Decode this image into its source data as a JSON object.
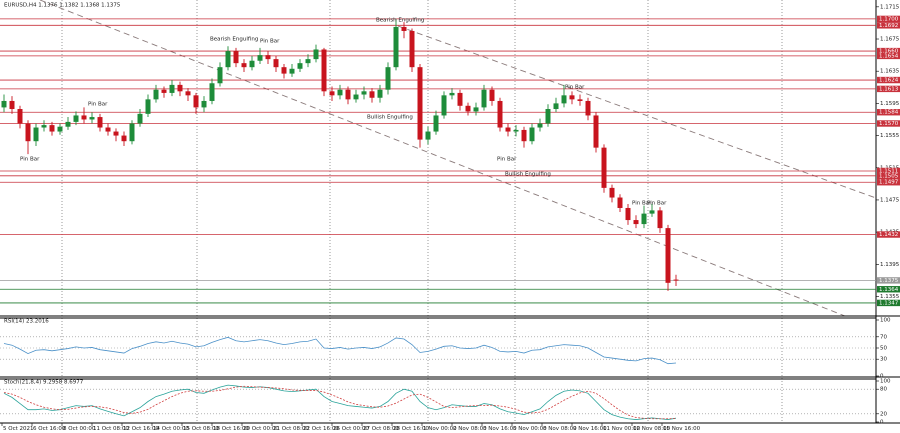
{
  "chart_data": [
    {
      "type": "candlestick",
      "title": "EURUSD,H4  1.1376 1.1382 1.1368 1.1375",
      "up_color": "#1e8c3a",
      "down_color": "#c8141e",
      "ylim": [
        1.1332,
        1.1721
      ],
      "yticks": [
        1.1715,
        1.1675,
        1.1635,
        1.1595,
        1.1555,
        1.1515,
        1.1475,
        1.1435,
        1.1395,
        1.1355
      ],
      "open": [
        1.159,
        1.1598,
        1.1588,
        1.157,
        1.1548,
        1.1565,
        1.1568,
        1.156,
        1.1566,
        1.1572,
        1.158,
        1.1575,
        1.1578,
        1.1565,
        1.156,
        1.1555,
        1.1548,
        1.157,
        1.1582,
        1.16,
        1.1612,
        1.1608,
        1.1618,
        1.161,
        1.1605,
        1.159,
        1.1598,
        1.162,
        1.164,
        1.166,
        1.1645,
        1.164,
        1.1648,
        1.1655,
        1.165,
        1.164,
        1.1632,
        1.1638,
        1.1645,
        1.165,
        1.1662,
        1.161,
        1.1605,
        1.1612,
        1.16,
        1.1606,
        1.161,
        1.1602,
        1.1612,
        1.164,
        1.169,
        1.1685,
        1.164,
        1.155,
        1.156,
        1.158,
        1.1605,
        1.1608,
        1.1592,
        1.1585,
        1.159,
        1.1612,
        1.1598,
        1.1565,
        1.156,
        1.1562,
        1.1548,
        1.1565,
        1.157,
        1.1588,
        1.1595,
        1.1605,
        1.16,
        1.1598,
        1.158,
        1.154,
        1.149,
        1.1478,
        1.1465,
        1.145,
        1.1445,
        1.1458,
        1.1462,
        1.144,
        1.1376
      ],
      "high": [
        1.1606,
        1.1604,
        1.1592,
        1.1574,
        1.157,
        1.1574,
        1.1572,
        1.157,
        1.1578,
        1.1585,
        1.159,
        1.1584,
        1.1582,
        1.157,
        1.1564,
        1.156,
        1.1574,
        1.1588,
        1.1606,
        1.1618,
        1.1616,
        1.1624,
        1.1622,
        1.1614,
        1.1608,
        1.1604,
        1.1626,
        1.1646,
        1.1666,
        1.1664,
        1.165,
        1.1654,
        1.1664,
        1.166,
        1.1654,
        1.1644,
        1.1644,
        1.165,
        1.1656,
        1.1668,
        1.1664,
        1.1616,
        1.1618,
        1.1616,
        1.1612,
        1.1616,
        1.1614,
        1.1618,
        1.1646,
        1.17,
        1.1696,
        1.1688,
        1.1644,
        1.1566,
        1.1586,
        1.161,
        1.1614,
        1.1612,
        1.1596,
        1.1596,
        1.1618,
        1.1616,
        1.1602,
        1.157,
        1.1568,
        1.1566,
        1.157,
        1.1576,
        1.1594,
        1.1602,
        1.1618,
        1.161,
        1.1606,
        1.1602,
        1.1584,
        1.1544,
        1.1494,
        1.1482,
        1.147,
        1.1456,
        1.1468,
        1.147,
        1.1466,
        1.1444,
        1.1382
      ],
      "low": [
        1.1584,
        1.1582,
        1.1564,
        1.1532,
        1.1542,
        1.156,
        1.1555,
        1.1556,
        1.1562,
        1.1568,
        1.157,
        1.157,
        1.156,
        1.1555,
        1.1548,
        1.1542,
        1.1544,
        1.1566,
        1.1578,
        1.1596,
        1.1602,
        1.1604,
        1.1604,
        1.1598,
        1.1582,
        1.1584,
        1.1594,
        1.1616,
        1.1636,
        1.164,
        1.1634,
        1.1636,
        1.1644,
        1.1644,
        1.1634,
        1.1626,
        1.1628,
        1.1634,
        1.164,
        1.1646,
        1.1604,
        1.1598,
        1.16,
        1.1594,
        1.1596,
        1.16,
        1.1596,
        1.1596,
        1.1606,
        1.1636,
        1.1676,
        1.1634,
        1.154,
        1.1544,
        1.1556,
        1.1576,
        1.16,
        1.1586,
        1.158,
        1.158,
        1.1586,
        1.1592,
        1.156,
        1.1554,
        1.1554,
        1.154,
        1.1544,
        1.156,
        1.1566,
        1.1584,
        1.159,
        1.1594,
        1.1592,
        1.1574,
        1.1534,
        1.1484,
        1.1472,
        1.146,
        1.1444,
        1.144,
        1.144,
        1.1454,
        1.1434,
        1.1362,
        1.1368
      ],
      "close": [
        1.1598,
        1.1588,
        1.157,
        1.1548,
        1.1565,
        1.1568,
        1.156,
        1.1566,
        1.1572,
        1.158,
        1.1575,
        1.1578,
        1.1565,
        1.156,
        1.1555,
        1.1548,
        1.157,
        1.1582,
        1.16,
        1.1612,
        1.1608,
        1.1618,
        1.161,
        1.1605,
        1.159,
        1.1598,
        1.162,
        1.164,
        1.166,
        1.1645,
        1.164,
        1.1648,
        1.1655,
        1.165,
        1.164,
        1.1632,
        1.1638,
        1.1645,
        1.165,
        1.1662,
        1.161,
        1.1605,
        1.1612,
        1.16,
        1.1606,
        1.161,
        1.1602,
        1.1612,
        1.164,
        1.169,
        1.1685,
        1.164,
        1.155,
        1.156,
        1.158,
        1.1605,
        1.1608,
        1.1592,
        1.1585,
        1.159,
        1.1612,
        1.1598,
        1.1565,
        1.156,
        1.1562,
        1.1548,
        1.1565,
        1.157,
        1.1588,
        1.1595,
        1.1605,
        1.16,
        1.1598,
        1.158,
        1.154,
        1.149,
        1.1478,
        1.1465,
        1.145,
        1.1445,
        1.1458,
        1.1462,
        1.144,
        1.1372,
        1.1375
      ],
      "levels": [
        {
          "value": 1.17,
          "label": "1.1700",
          "color": "#c8323c"
        },
        {
          "value": 1.1692,
          "label": "1.1692",
          "color": "#c8323c"
        },
        {
          "value": 1.166,
          "label": "1.1660",
          "color": "#c8323c"
        },
        {
          "value": 1.1654,
          "label": "1.1654",
          "color": "#c8323c"
        },
        {
          "value": 1.1624,
          "label": "1.1624",
          "color": "#c8323c"
        },
        {
          "value": 1.1613,
          "label": "1.1613",
          "color": "#c8323c"
        },
        {
          "value": 1.1584,
          "label": "1.1584",
          "color": "#c8323c"
        },
        {
          "value": 1.157,
          "label": "1.1570",
          "color": "#c8323c"
        },
        {
          "value": 1.1511,
          "label": "1.1511",
          "color": "#c8323c"
        },
        {
          "value": 1.1505,
          "label": "1.1505",
          "color": "#c8323c"
        },
        {
          "value": 1.1497,
          "label": "1.1497",
          "color": "#c8323c"
        },
        {
          "value": 1.1432,
          "label": "1.1432",
          "color": "#c8323c"
        },
        {
          "value": 1.1375,
          "label": "1.1375",
          "color": "#9a9a9a"
        },
        {
          "value": 1.1364,
          "label": "1.1364",
          "color": "#1e7a2e"
        },
        {
          "value": 1.1347,
          "label": "1.1347",
          "color": "#1e7a2e"
        }
      ],
      "annotations": [
        "Pin Bar",
        "Pin Bar",
        "Bearish Engulfing",
        "Pin Bar",
        "Bearish Engulfing",
        "Bullish Engulfing",
        "Pin Bar",
        "Bullish Engulfing",
        "Pin Bar",
        "Pin Bar",
        "Pin Bar"
      ],
      "x_labels": [
        "5 Oct 2021",
        "6 Oct 16:00",
        "8 Oct 00:00",
        "11 Oct 08:00",
        "12 Oct 16:00",
        "14 Oct 00:00",
        "15 Oct 08:00",
        "18 Oct 16:00",
        "20 Oct 00:00",
        "21 Oct 08:00",
        "22 Oct 16:00",
        "26 Oct 00:00",
        "27 Oct 08:00",
        "28 Oct 16:00",
        "1 Nov 00:00",
        "2 Nov 08:00",
        "3 Nov 16:00",
        "5 Nov 00:00",
        "8 Nov 08:00",
        "9 Nov 16:00",
        "11 Nov 00:00",
        "12 Nov 08:00",
        "15 Nov 16:00"
      ]
    },
    {
      "type": "line",
      "title": "RSI(14) 23.2016",
      "ylim": [
        0,
        100
      ],
      "yticks": [
        0,
        30,
        50,
        70,
        100
      ],
      "series": [
        {
          "color": "#4a90c8",
          "values": [
            58,
            55,
            48,
            40,
            46,
            47,
            45,
            47,
            49,
            52,
            50,
            51,
            47,
            45,
            43,
            41,
            49,
            53,
            58,
            61,
            59,
            62,
            59,
            57,
            52,
            54,
            60,
            65,
            69,
            63,
            61,
            63,
            65,
            63,
            59,
            56,
            58,
            61,
            62,
            66,
            50,
            49,
            51,
            48,
            50,
            51,
            49,
            52,
            59,
            68,
            66,
            56,
            42,
            44,
            48,
            53,
            54,
            50,
            49,
            50,
            55,
            51,
            44,
            43,
            44,
            41,
            46,
            47,
            52,
            54,
            56,
            55,
            54,
            50,
            42,
            34,
            32,
            30,
            28,
            27,
            31,
            32,
            29,
            22,
            23.2016
          ]
        }
      ]
    },
    {
      "type": "line",
      "title": "Stoch(21,8,4) 9.2958 8.6977",
      "ylim": [
        0,
        100
      ],
      "yticks": [
        0,
        20,
        80,
        100
      ],
      "series": [
        {
          "color": "#2aa39a",
          "values": [
            70,
            60,
            45,
            30,
            30,
            32,
            28,
            30,
            35,
            40,
            38,
            40,
            32,
            26,
            20,
            15,
            25,
            35,
            50,
            62,
            68,
            75,
            78,
            80,
            72,
            70,
            78,
            85,
            90,
            88,
            85,
            84,
            86,
            84,
            80,
            76,
            74,
            76,
            78,
            80,
            62,
            50,
            45,
            40,
            38,
            36,
            34,
            38,
            50,
            70,
            80,
            75,
            50,
            35,
            30,
            35,
            42,
            40,
            38,
            38,
            45,
            42,
            32,
            25,
            22,
            18,
            25,
            32,
            50,
            65,
            75,
            78,
            76,
            70,
            50,
            30,
            18,
            12,
            8,
            6,
            8,
            10,
            8,
            6,
            9.2958
          ]
        },
        {
          "color": "#d04040",
          "dashed": true,
          "values": [
            72,
            68,
            60,
            50,
            42,
            36,
            32,
            30,
            31,
            34,
            37,
            38,
            37,
            34,
            29,
            23,
            21,
            24,
            31,
            42,
            52,
            62,
            70,
            75,
            76,
            75,
            75,
            77,
            81,
            85,
            87,
            86,
            85,
            84,
            83,
            81,
            78,
            77,
            77,
            77,
            73,
            66,
            58,
            49,
            43,
            40,
            37,
            36,
            39,
            46,
            56,
            66,
            68,
            60,
            49,
            38,
            35,
            37,
            39,
            40,
            40,
            41,
            39,
            36,
            31,
            24,
            22,
            24,
            31,
            42,
            53,
            63,
            71,
            75,
            70,
            57,
            42,
            28,
            17,
            11,
            9,
            8,
            8,
            8,
            8.6977
          ]
        }
      ]
    }
  ]
}
